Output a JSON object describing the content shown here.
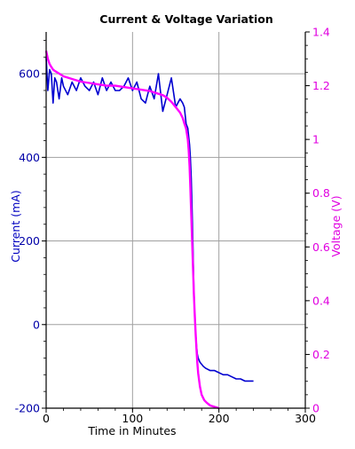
{
  "chart_data": {
    "type": "line",
    "title": "Current & Voltage Variation",
    "xlabel": "Time in Minutes",
    "ylabel_left": "Current (mA)",
    "ylabel_right": "Voltage (V)",
    "xlim": [
      0,
      300
    ],
    "ylim_left": [
      -200,
      700
    ],
    "ylim_right": [
      0,
      1.4
    ],
    "x_ticks": [
      "0",
      "100",
      "200",
      "300"
    ],
    "y_left_ticks": [
      "-200",
      "0",
      "200",
      "400",
      "600"
    ],
    "y_right_ticks": [
      "0",
      "0.2",
      "0.4",
      "0.6",
      "0.8",
      "1",
      "1.2",
      "1.4"
    ],
    "grid": true,
    "colors": {
      "current": "#0000d0",
      "voltage": "#ff00ff",
      "left_axis": "#0000a8",
      "right_axis": "#e000e0"
    },
    "series": [
      {
        "axis": "left",
        "x": [
          0,
          2,
          4,
          6,
          8,
          10,
          12,
          15,
          18,
          20,
          25,
          30,
          35,
          40,
          45,
          50,
          55,
          60,
          65,
          70,
          75,
          80,
          85,
          90,
          95,
          100,
          105,
          110,
          115,
          120,
          125,
          130,
          135,
          140,
          145,
          150,
          155,
          158,
          160,
          162,
          164,
          165,
          166,
          167,
          168,
          169,
          170,
          171,
          172,
          173,
          174,
          175,
          176,
          178,
          180,
          182,
          185,
          190,
          195,
          200,
          205,
          210,
          215,
          220,
          225,
          230,
          235,
          240
        ],
        "values": [
          640,
          560,
          610,
          600,
          530,
          590,
          580,
          540,
          590,
          570,
          550,
          580,
          560,
          590,
          570,
          560,
          580,
          550,
          590,
          560,
          580,
          560,
          560,
          570,
          590,
          560,
          580,
          540,
          530,
          570,
          540,
          600,
          510,
          550,
          590,
          520,
          540,
          530,
          520,
          480,
          470,
          450,
          430,
          400,
          350,
          270,
          180,
          90,
          20,
          -20,
          -50,
          -70,
          -80,
          -90,
          -95,
          -100,
          -105,
          -110,
          -110,
          -115,
          -120,
          -120,
          -125,
          -130,
          -130,
          -135,
          -135,
          -135
        ]
      },
      {
        "axis": "right",
        "x": [
          0,
          2,
          4,
          6,
          8,
          10,
          15,
          20,
          30,
          40,
          50,
          60,
          70,
          80,
          90,
          100,
          110,
          120,
          125,
          130,
          135,
          140,
          145,
          150,
          155,
          158,
          160,
          162,
          164,
          165,
          166,
          167,
          168,
          169,
          170,
          171,
          172,
          173,
          174,
          175,
          176,
          178,
          180,
          183,
          186,
          190,
          195,
          200
        ],
        "values": [
          1.33,
          1.3,
          1.28,
          1.27,
          1.26,
          1.255,
          1.245,
          1.235,
          1.225,
          1.215,
          1.21,
          1.205,
          1.2,
          1.2,
          1.195,
          1.19,
          1.185,
          1.18,
          1.175,
          1.17,
          1.165,
          1.155,
          1.14,
          1.12,
          1.1,
          1.08,
          1.06,
          1.04,
          1.0,
          0.96,
          0.9,
          0.82,
          0.72,
          0.62,
          0.52,
          0.43,
          0.35,
          0.28,
          0.22,
          0.17,
          0.13,
          0.08,
          0.05,
          0.03,
          0.02,
          0.01,
          0.005,
          0.0
        ]
      }
    ]
  }
}
